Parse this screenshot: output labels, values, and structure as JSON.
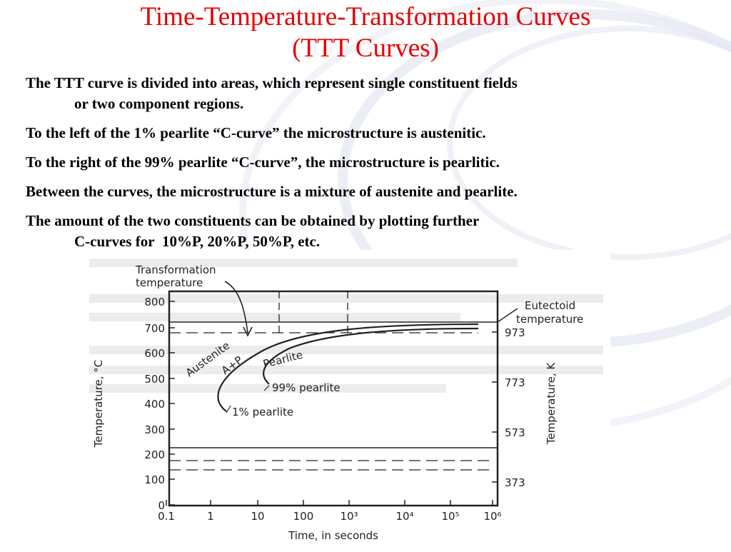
{
  "slide": {
    "title_line1": "Time-Temperature-Transformation Curves",
    "title_line2": "(TTT Curves)",
    "paragraphs": [
      {
        "line1": "The TTT curve is divided into areas, which represent single constituent fields",
        "line2": "or two component regions."
      },
      {
        "line1": "To the left of the 1% pearlite “C-curve” the microstructure is austenitic."
      },
      {
        "line1": "To the right of the 99% pearlite “C-curve”, the microstructure is pearlitic."
      },
      {
        "line1": "Between the curves, the microstructure is a mixture of austenite and pearlite."
      },
      {
        "line1": "The amount of the two constituents can be obtained by plotting further",
        "line2": "C-curves for  10%P, 20%P, 50%P, etc."
      }
    ]
  },
  "figure": {
    "y_left_label": "Temperature, °C",
    "y_right_label": "Temperature, K",
    "x_label": "Time,  in seconds",
    "y_left_ticks": [
      "800",
      "700",
      "600",
      "500",
      "400",
      "300",
      "200",
      "100",
      "0"
    ],
    "y_right_ticks": [
      "973",
      "773",
      "573",
      "373"
    ],
    "x_ticks": [
      "0.1",
      "1",
      "10",
      "100",
      "10³",
      "10⁴",
      "10⁵",
      "10⁶"
    ],
    "ann_transformation_1": "Transformation",
    "ann_transformation_2": "temperature",
    "ann_eutectoid_1": "Eutectoid",
    "ann_eutectoid_2": "temperature",
    "lbl_austenite": "Austenite",
    "lbl_ap": "A+P",
    "lbl_pearlite": "Pearlite",
    "lbl_99": "99% pearlite",
    "lbl_1": "1% pearlite"
  }
}
